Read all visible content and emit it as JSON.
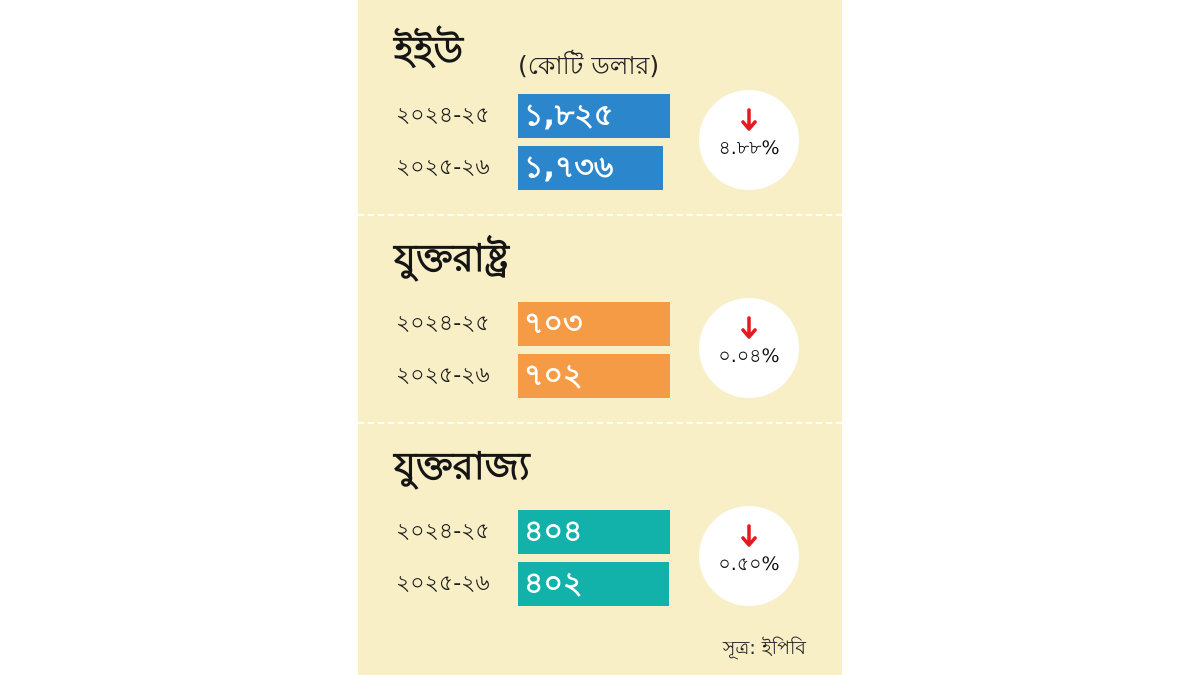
{
  "unit_label": "(কোটি ডলার)",
  "source": "সূত্র: ইপিবি",
  "colors": {
    "background": "#f8efc6",
    "down_arrow": "#e21b23"
  },
  "chart_data": [
    {
      "type": "bar",
      "title": "ইইউ",
      "categories": [
        "২০২৪-২৫",
        "২০২৫-২৬"
      ],
      "values": [
        1825,
        1736
      ],
      "value_labels": [
        "১,৮২৫",
        "১,৭৩৬"
      ],
      "change": "৪.৮৮%",
      "change_direction": "down",
      "color": "#2b86cc"
    },
    {
      "type": "bar",
      "title": "যুক্তরাষ্ট্র",
      "categories": [
        "২০২৪-২৫",
        "২০২৫-২৬"
      ],
      "values": [
        703,
        702
      ],
      "value_labels": [
        "৭০৩",
        "৭০২"
      ],
      "change": "০.০৪%",
      "change_direction": "down",
      "color": "#f59a45"
    },
    {
      "type": "bar",
      "title": "যুক্তরাজ্য",
      "categories": [
        "২০২৪-২৫",
        "২০২৫-২৬"
      ],
      "values": [
        404,
        402
      ],
      "value_labels": [
        "৪০৪",
        "৪০২"
      ],
      "change": "০.৫০%",
      "change_direction": "down",
      "color": "#12b1a9"
    }
  ]
}
